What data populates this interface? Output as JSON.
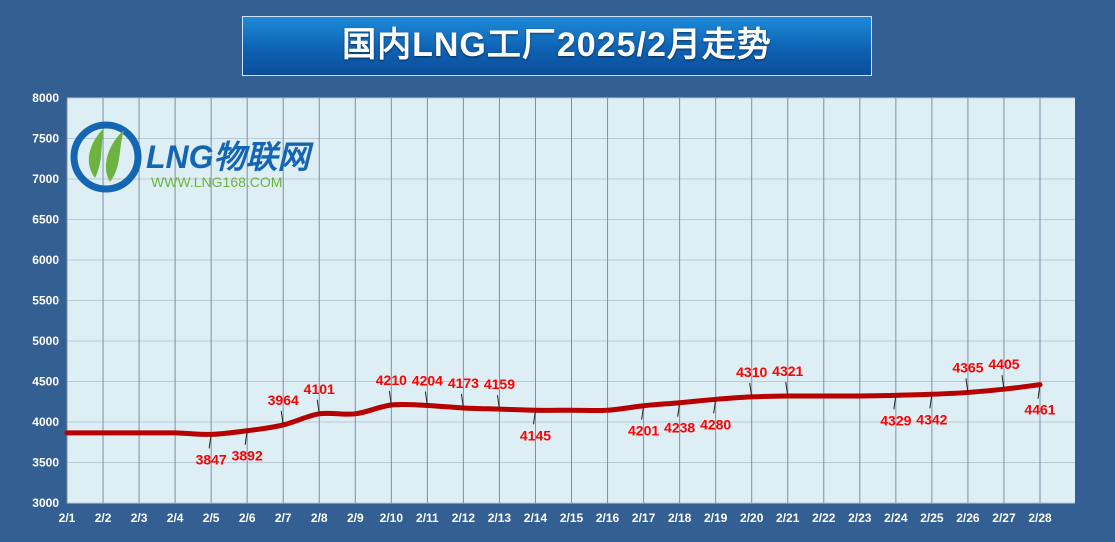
{
  "title": "国内LNG工厂2025/2月走势",
  "logo": {
    "brand": "LNG物联网",
    "url": "WWW.LNG168.COM",
    "colors": {
      "blue": "#1565b5",
      "green": "#6db33f"
    }
  },
  "colors": {
    "background": "#335f92",
    "plot_background": "#ddeef5",
    "line": "#b80000",
    "label": "#ff0000",
    "grid": "#7f8ea3"
  },
  "chart_data": {
    "type": "line",
    "title": "国内LNG工厂2025/2月走势",
    "xlabel": "",
    "ylabel": "",
    "ylim": [
      3000,
      8000
    ],
    "yticks": [
      3000,
      3500,
      4000,
      4500,
      5000,
      5500,
      6000,
      6500,
      7000,
      7500,
      8000
    ],
    "grid": true,
    "categories": [
      "2/1",
      "2/2",
      "2/3",
      "2/4",
      "2/5",
      "2/6",
      "2/7",
      "2/8",
      "2/9",
      "2/10",
      "2/11",
      "2/12",
      "2/13",
      "2/14",
      "2/15",
      "2/16",
      "2/17",
      "2/18",
      "2/19",
      "2/20",
      "2/21",
      "2/22",
      "2/23",
      "2/24",
      "2/25",
      "2/26",
      "2/27",
      "2/28"
    ],
    "values": [
      3865,
      3865,
      3865,
      3865,
      3847,
      3892,
      3964,
      4101,
      4101,
      4210,
      4204,
      4173,
      4159,
      4145,
      4145,
      4145,
      4201,
      4238,
      4280,
      4310,
      4321,
      4321,
      4321,
      4329,
      4342,
      4365,
      4405,
      4461
    ],
    "labels": [
      {
        "index": 4,
        "text": "3847",
        "pos": "below"
      },
      {
        "index": 5,
        "text": "3892",
        "pos": "below"
      },
      {
        "index": 6,
        "text": "3964",
        "pos": "above"
      },
      {
        "index": 7,
        "text": "4101",
        "pos": "above"
      },
      {
        "index": 9,
        "text": "4210",
        "pos": "above"
      },
      {
        "index": 10,
        "text": "4204",
        "pos": "above"
      },
      {
        "index": 11,
        "text": "4173",
        "pos": "above"
      },
      {
        "index": 12,
        "text": "4159",
        "pos": "above"
      },
      {
        "index": 13,
        "text": "4145",
        "pos": "below"
      },
      {
        "index": 16,
        "text": "4201",
        "pos": "below"
      },
      {
        "index": 17,
        "text": "4238",
        "pos": "below"
      },
      {
        "index": 18,
        "text": "4280",
        "pos": "below"
      },
      {
        "index": 19,
        "text": "4310",
        "pos": "above"
      },
      {
        "index": 20,
        "text": "4321",
        "pos": "above"
      },
      {
        "index": 23,
        "text": "4329",
        "pos": "below"
      },
      {
        "index": 24,
        "text": "4342",
        "pos": "below"
      },
      {
        "index": 25,
        "text": "4365",
        "pos": "above"
      },
      {
        "index": 26,
        "text": "4405",
        "pos": "above"
      },
      {
        "index": 27,
        "text": "4461",
        "pos": "below"
      }
    ]
  }
}
